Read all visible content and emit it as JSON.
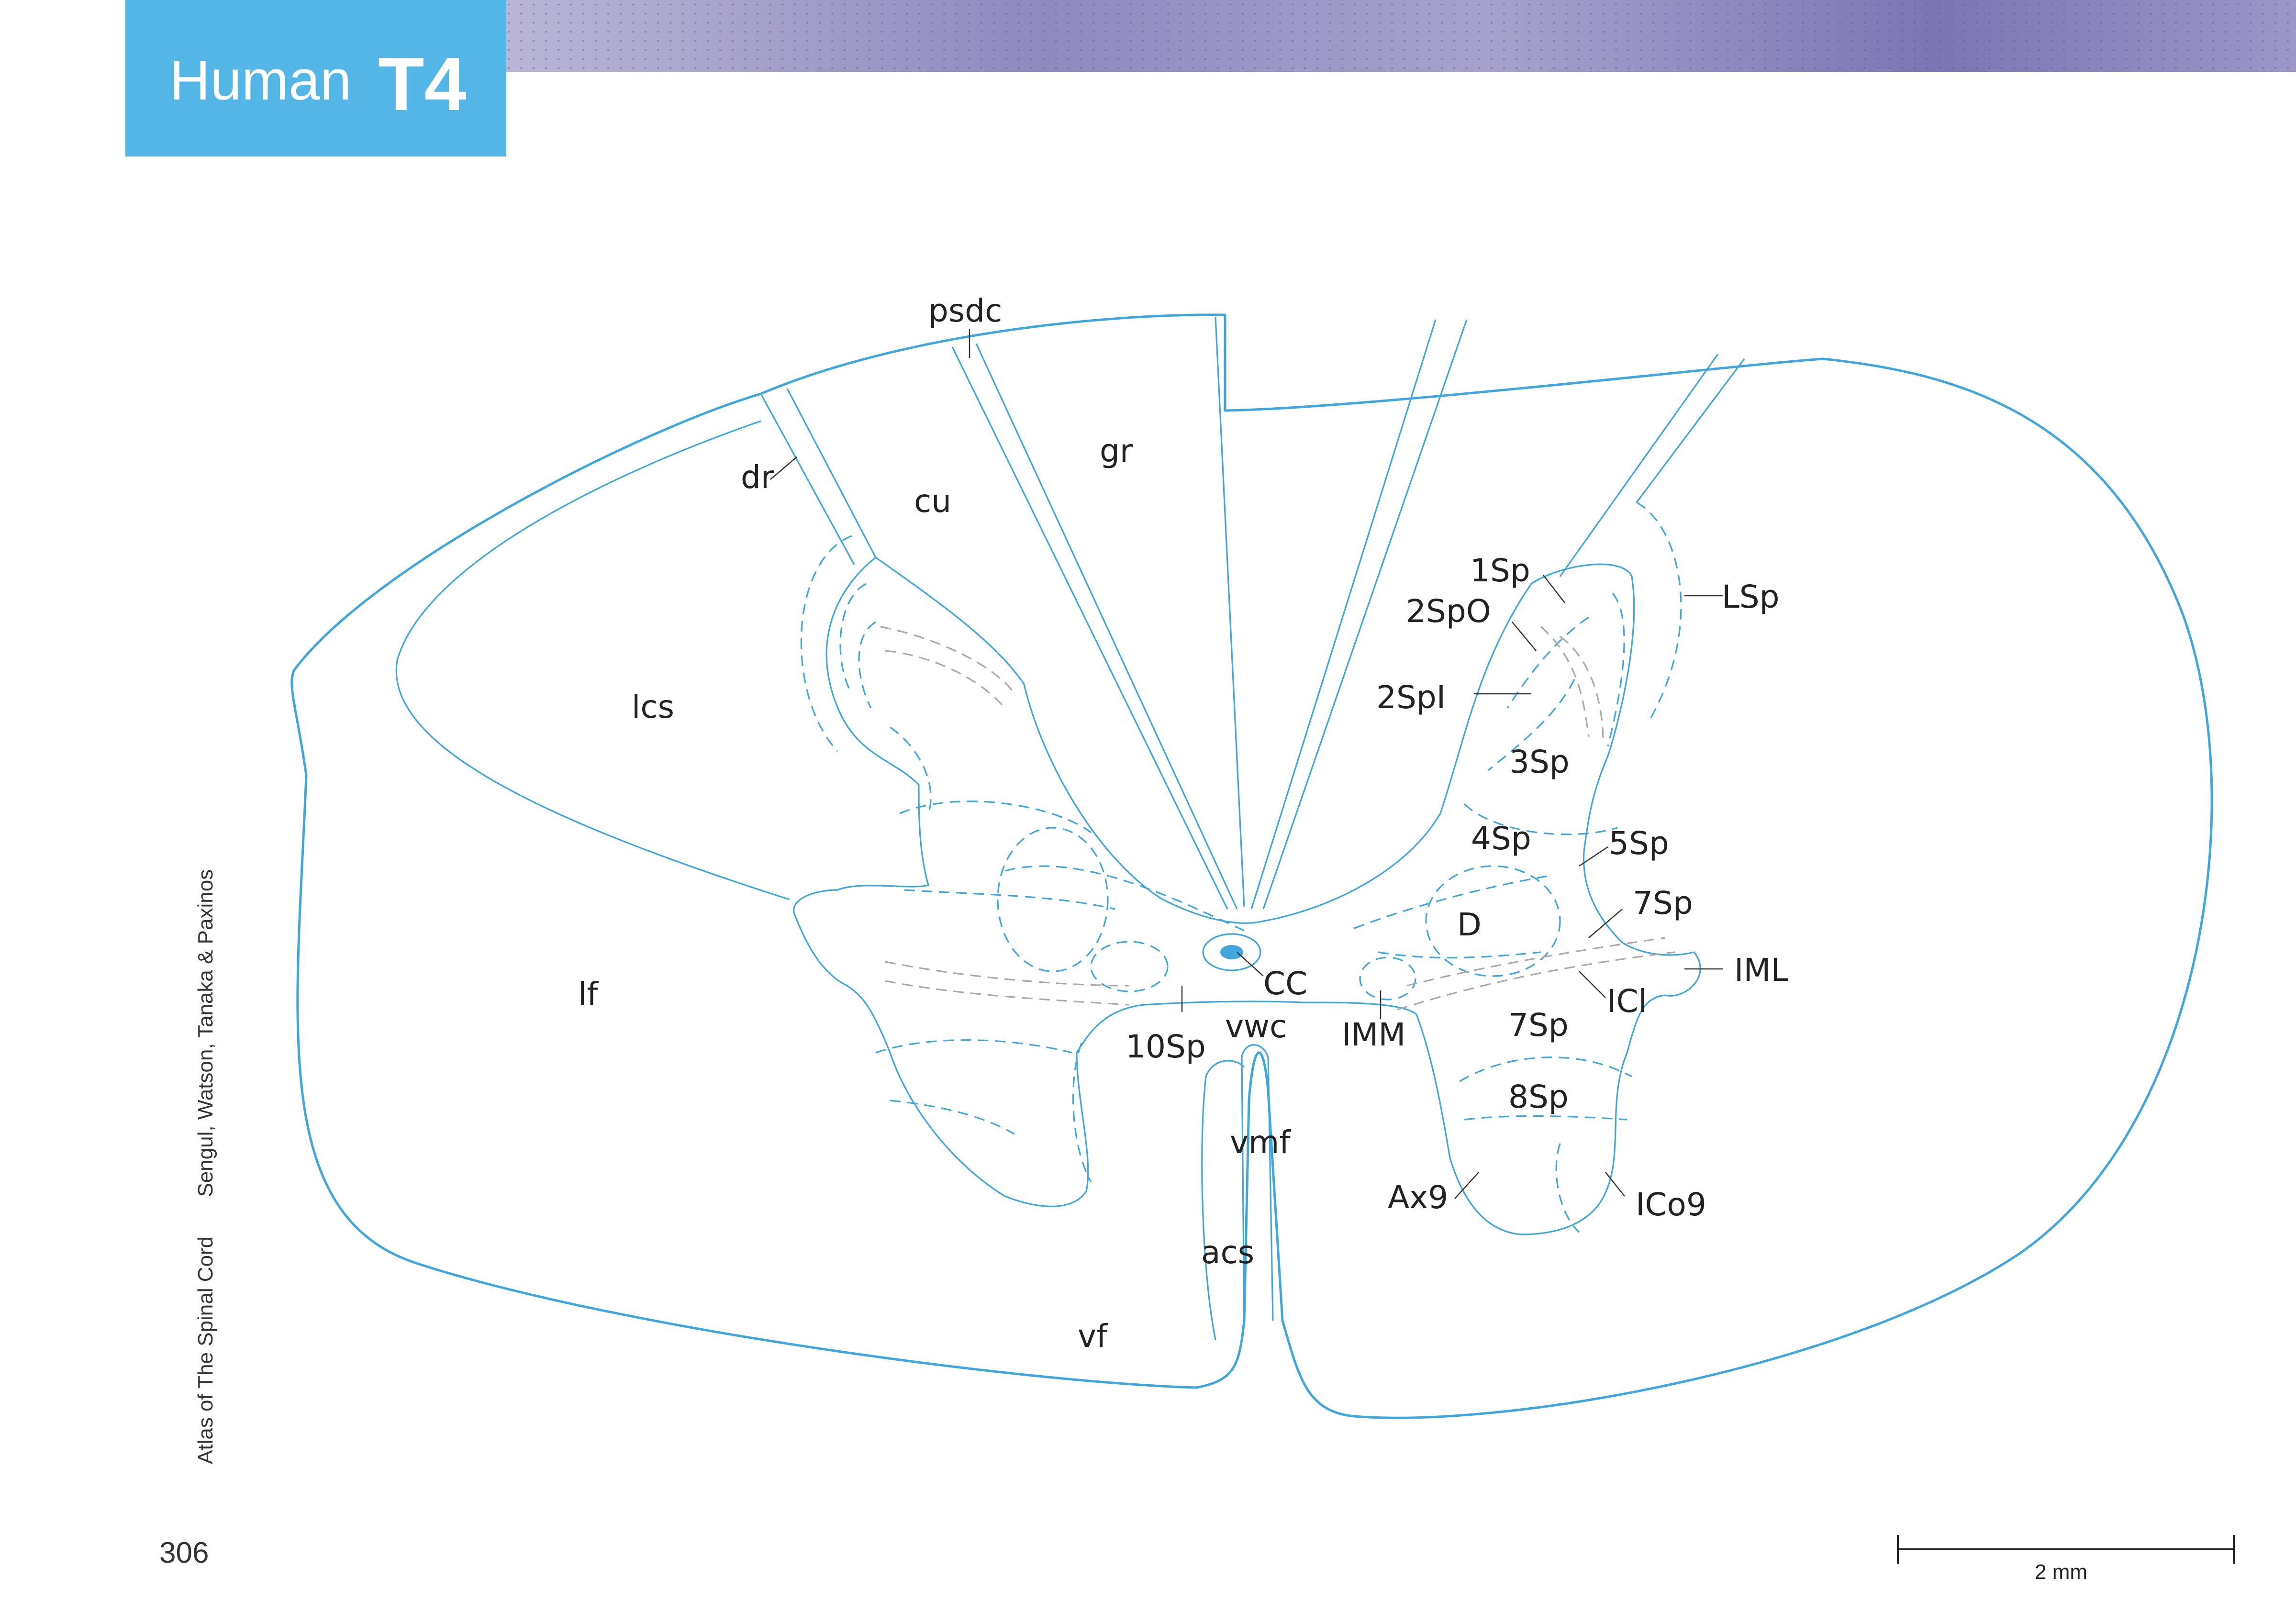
{
  "header": {
    "species": "Human",
    "level": "T4"
  },
  "credits": {
    "title": "Atlas of The Spinal Cord",
    "authors": "Sengul, Watson, Tanaka & Paxinos"
  },
  "page_number": "306",
  "scale_bar": {
    "label": "2 mm"
  },
  "colors": {
    "header_box": "#54b6e6",
    "outline": "#41a6dd",
    "gray_dash": "#a9a9a9"
  },
  "labels": {
    "psdc": "psdc",
    "gr": "gr",
    "cu": "cu",
    "dr": "dr",
    "lcs": "lcs",
    "lf": "lf",
    "vf": "vf",
    "acs": "acs",
    "vmf": "vmf",
    "vwc": "vwc",
    "cc": "CC",
    "sp10": "10Sp",
    "imm": "IMM",
    "d": "D",
    "sp1": "1Sp",
    "sp2o": "2SpO",
    "sp2i": "2SpI",
    "sp3": "3Sp",
    "sp4": "4Sp",
    "sp5": "5Sp",
    "sp7a": "7Sp",
    "sp7b": "7Sp",
    "sp8": "8Sp",
    "lsp": "LSp",
    "iml": "IML",
    "icl": "ICl",
    "ax9": "Ax9",
    "ico9": "ICo9"
  }
}
